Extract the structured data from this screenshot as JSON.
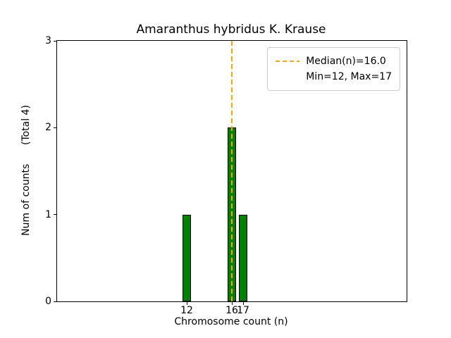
{
  "figure": {
    "background": "#ffffff"
  },
  "chart_data": {
    "type": "bar",
    "title": "Amaranthus hybridus K. Krause",
    "xlabel": "Chromosome count (n)",
    "ylabel": "Num of counts      (Total 4)",
    "total_counts": 4,
    "x": [
      12,
      16,
      17
    ],
    "values": [
      1,
      2,
      1
    ],
    "bar_width": 0.8,
    "bar_color": "#008000",
    "bar_edge_color": "#000000",
    "xlim": [
      0.5,
      31.5
    ],
    "ylim": [
      0,
      3
    ],
    "xticks": [
      12,
      16,
      17
    ],
    "yticks": [
      0,
      1,
      2,
      3
    ],
    "median": 16.0,
    "min": 12,
    "max": 17,
    "median_line_color": "#FFA500",
    "grid": false,
    "legend": {
      "position": "upper right",
      "entries": [
        "Median(n)=16.0",
        "Min=12, Max=17"
      ]
    }
  }
}
